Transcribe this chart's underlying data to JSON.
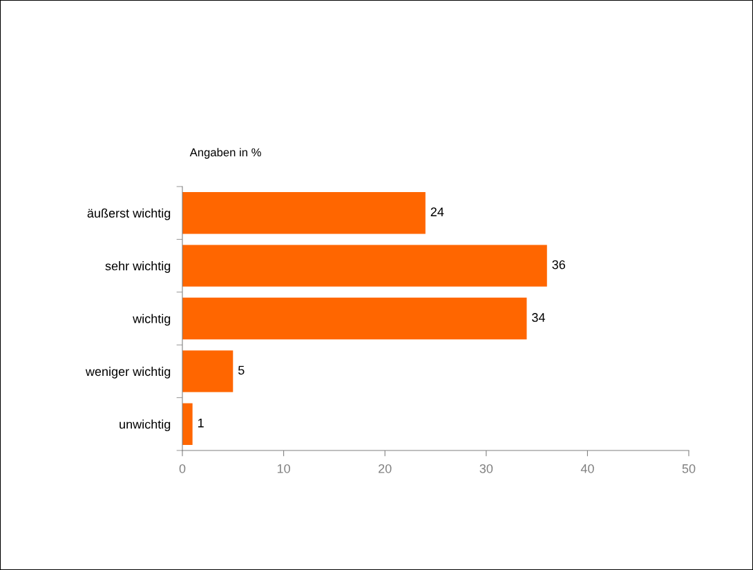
{
  "chart_data": {
    "type": "bar",
    "orientation": "horizontal",
    "subtitle": "Angaben in %",
    "categories": [
      "äußerst wichtig",
      "sehr wichtig",
      "wichtig",
      "weniger wichtig",
      "unwichtig"
    ],
    "values": [
      24,
      36,
      34,
      5,
      1
    ],
    "color": "#ff6600",
    "xlim": [
      0,
      50
    ],
    "xticks": [
      0,
      10,
      20,
      30,
      40,
      50
    ],
    "grid": false,
    "legend": false,
    "data_labels": true
  }
}
